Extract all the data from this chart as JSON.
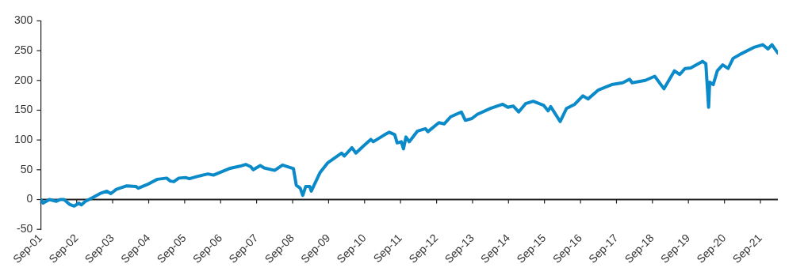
{
  "chart_data": {
    "type": "line",
    "x": [
      "2001-09-01",
      "2001-09-24",
      "2001-11-28",
      "2002-02-07",
      "2002-03-16",
      "2002-04-26",
      "2002-06-20",
      "2002-08-07",
      "2002-09-24",
      "2002-10-19",
      "2002-11-28",
      "2003-02-07",
      "2003-04-26",
      "2003-07-04",
      "2003-08-14",
      "2003-10-08",
      "2004-01-22",
      "2004-04-26",
      "2004-05-18",
      "2004-08-14",
      "2004-11-28",
      "2005-03-02",
      "2005-04-08",
      "2005-05-14",
      "2005-07-04",
      "2005-09-09",
      "2005-10-19",
      "2006-01-12",
      "2006-04-26",
      "2006-06-20",
      "2006-11-28",
      "2007-03-16",
      "2007-05-14",
      "2007-07-04",
      "2007-07-29",
      "2007-10-08",
      "2007-11-17",
      "2008-03-02",
      "2008-05-21",
      "2008-09-09",
      "2008-10-08",
      "2008-11-17",
      "2008-12-13",
      "2009-01-12",
      "2009-02-21",
      "2009-03-09",
      "2009-06-05",
      "2009-08-25",
      "2010-01-12",
      "2010-02-07",
      "2010-04-26",
      "2010-06-05",
      "2010-08-14",
      "2010-11-03",
      "2010-11-28",
      "2011-03-16",
      "2011-05-10",
      "2011-07-04",
      "2011-07-29",
      "2011-09-09",
      "2011-10-01",
      "2011-10-26",
      "2011-11-28",
      "2012-02-21",
      "2012-05-10",
      "2012-06-05",
      "2012-09-24",
      "2012-11-17",
      "2013-01-22",
      "2013-05-10",
      "2013-06-20",
      "2013-08-25",
      "2013-10-19",
      "2014-03-02",
      "2014-07-04",
      "2014-08-25",
      "2014-10-19",
      "2014-12-13",
      "2015-02-21",
      "2015-05-10",
      "2015-08-25",
      "2015-10-08",
      "2015-11-03",
      "2016-02-07",
      "2016-04-12",
      "2016-07-04",
      "2016-09-24",
      "2016-11-17",
      "2017-03-02",
      "2017-07-15",
      "2017-11-03",
      "2018-01-12",
      "2018-02-07",
      "2018-06-20",
      "2018-09-24",
      "2018-12-27",
      "2019-04-12",
      "2019-06-05",
      "2019-07-29",
      "2019-09-24",
      "2020-01-22",
      "2020-02-25",
      "2020-03-24",
      "2020-04-04",
      "2020-05-10",
      "2020-06-20",
      "2020-08-14",
      "2020-10-08",
      "2020-11-28",
      "2021-02-21",
      "2021-07-04",
      "2021-09-24",
      "2021-11-17",
      "2021-12-27",
      "2022-02-25"
    ],
    "series": [
      {
        "color": "#0a8ac8",
        "values": [
          0,
          -6,
          0,
          -3,
          0,
          0,
          -8,
          -11,
          -6,
          -9,
          -3,
          3,
          10,
          14,
          10,
          17,
          23,
          22,
          19,
          25,
          34,
          36,
          31,
          30,
          36,
          37,
          35,
          39,
          43,
          41,
          52,
          56,
          59,
          55,
          50,
          57,
          53,
          49,
          58,
          52,
          24,
          19,
          7,
          22,
          22,
          14,
          45,
          62,
          78,
          73,
          87,
          78,
          89,
          101,
          97,
          108,
          113,
          109,
          95,
          97,
          85,
          105,
          97,
          115,
          119,
          114,
          129,
          127,
          139,
          147,
          133,
          136,
          143,
          153,
          160,
          155,
          157,
          147,
          161,
          165,
          158,
          149,
          156,
          131,
          153,
          160,
          174,
          169,
          184,
          193,
          196,
          202,
          196,
          200,
          207,
          186,
          216,
          210,
          220,
          221,
          232,
          228,
          155,
          197,
          193,
          216,
          226,
          220,
          237,
          245,
          256,
          260,
          253,
          260,
          246
        ]
      }
    ],
    "xlim": [
      "2001-09-01",
      "2022-02-25"
    ],
    "xticks": [
      {
        "value": "2001-09-01",
        "label": "Sep-01"
      },
      {
        "value": "2002-09-01",
        "label": "Sep-02"
      },
      {
        "value": "2003-09-01",
        "label": "Sep-03"
      },
      {
        "value": "2004-09-01",
        "label": "Sep-04"
      },
      {
        "value": "2005-09-01",
        "label": "Sep-05"
      },
      {
        "value": "2006-09-01",
        "label": "Sep-06"
      },
      {
        "value": "2007-09-01",
        "label": "Sep-07"
      },
      {
        "value": "2008-09-01",
        "label": "Sep-08"
      },
      {
        "value": "2009-09-01",
        "label": "Sep-09"
      },
      {
        "value": "2010-09-01",
        "label": "Sep-10"
      },
      {
        "value": "2011-09-01",
        "label": "Sep-11"
      },
      {
        "value": "2012-09-01",
        "label": "Sep-12"
      },
      {
        "value": "2013-09-01",
        "label": "Sep-13"
      },
      {
        "value": "2014-09-01",
        "label": "Sep-14"
      },
      {
        "value": "2015-09-01",
        "label": "Sep-15"
      },
      {
        "value": "2016-09-01",
        "label": "Sep-16"
      },
      {
        "value": "2017-09-01",
        "label": "Sep-17"
      },
      {
        "value": "2018-09-01",
        "label": "Sep-18"
      },
      {
        "value": "2019-09-01",
        "label": "Sep-19"
      },
      {
        "value": "2020-09-01",
        "label": "Sep-20"
      },
      {
        "value": "2021-09-01",
        "label": "Sep-21"
      }
    ],
    "ylim": [
      -50,
      300
    ],
    "yticks": [
      -50,
      0,
      50,
      100,
      150,
      200,
      250,
      300
    ],
    "ref_lines": [
      {
        "axis": "y",
        "value": 0,
        "color": "#222222",
        "line_style": "solid"
      }
    ],
    "grid": false,
    "legend": false,
    "marker": "none",
    "line_style": "solid"
  }
}
